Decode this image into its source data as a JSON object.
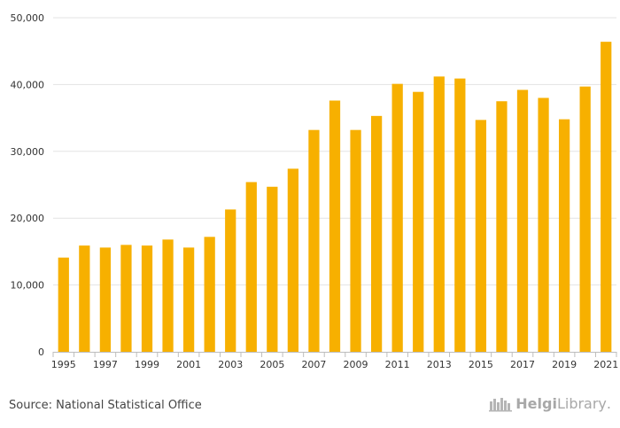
{
  "chart_data": {
    "type": "bar",
    "title": "",
    "xlabel": "",
    "ylabel": "",
    "ylim": [
      0,
      50000
    ],
    "yticks": [
      0,
      10000,
      20000,
      30000,
      40000,
      50000
    ],
    "ytick_labels": [
      "0",
      "10,000",
      "20,000",
      "30,000",
      "40,000",
      "50,000"
    ],
    "categories": [
      "1995",
      "1996",
      "1997",
      "1998",
      "1999",
      "2000",
      "2001",
      "2002",
      "2003",
      "2004",
      "2005",
      "2006",
      "2007",
      "2008",
      "2009",
      "2010",
      "2011",
      "2012",
      "2013",
      "2014",
      "2015",
      "2016",
      "2017",
      "2018",
      "2019",
      "2020",
      "2021"
    ],
    "xtick_labels": [
      "1995",
      "1997",
      "1999",
      "2001",
      "2003",
      "2005",
      "2007",
      "2009",
      "2011",
      "2013",
      "2015",
      "2017",
      "2019",
      "2021"
    ],
    "values": [
      14100,
      15900,
      15600,
      16000,
      15900,
      16800,
      15600,
      17200,
      21300,
      25400,
      24700,
      27400,
      33200,
      37600,
      33200,
      35300,
      40100,
      38900,
      41200,
      40900,
      34700,
      37500,
      39200,
      38000,
      34800,
      39700,
      46400
    ],
    "bar_color": "#F7B000",
    "grid": true
  },
  "footer": {
    "source": "Source: National Statistical Office",
    "logo_bold": "Helgi",
    "logo_rest": "Library",
    "logo_dot": "."
  }
}
